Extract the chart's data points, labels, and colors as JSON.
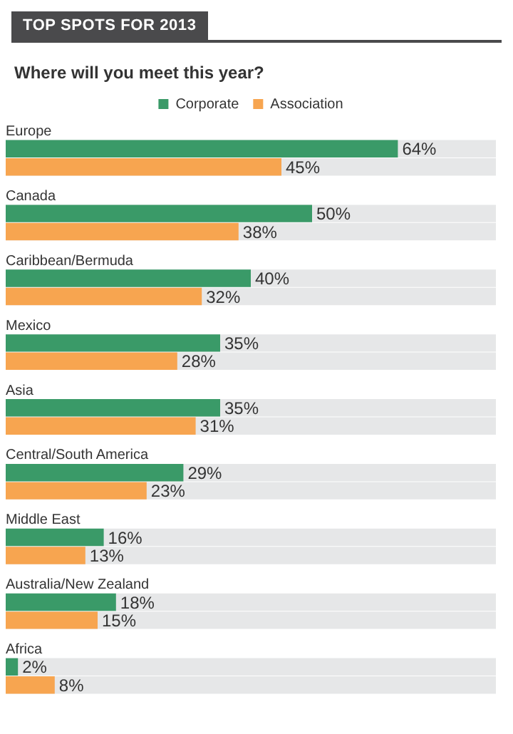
{
  "chart_data": {
    "type": "bar",
    "orientation": "horizontal",
    "title": "TOP SPOTS FOR 2013",
    "subtitle": "Where will you meet this year?",
    "categories": [
      "Europe",
      "Canada",
      "Caribbean/Bermuda",
      "Mexico",
      "Asia",
      "Central/South America",
      "Middle East",
      "Australia/New Zealand",
      "Africa"
    ],
    "series": [
      {
        "name": "Corporate",
        "color": "#3a9a68",
        "values": [
          64,
          50,
          40,
          35,
          35,
          29,
          16,
          18,
          2
        ],
        "value_labels": [
          "64%",
          "50%",
          "40%",
          "35%",
          "35%",
          "29%",
          "16%",
          "18%",
          "2%"
        ]
      },
      {
        "name": "Association",
        "color": "#f7a550",
        "values": [
          45,
          38,
          32,
          28,
          31,
          23,
          13,
          15,
          8
        ],
        "value_labels": [
          "45%",
          "38%",
          "32%",
          "28%",
          "31%",
          "23%",
          "13%",
          "15%",
          "8%"
        ]
      }
    ],
    "legend": "top"
  }
}
